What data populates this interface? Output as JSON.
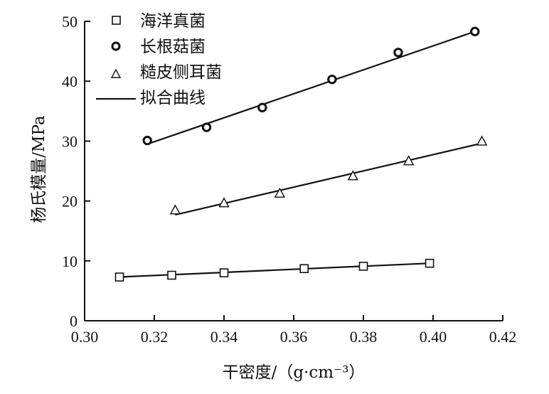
{
  "chart_data": {
    "type": "scatter",
    "xlabel": "干密度/（g·cm⁻³）",
    "ylabel": "杨氏模量/MPa",
    "xlim": [
      0.3,
      0.42
    ],
    "ylim": [
      0,
      50
    ],
    "x_ticks": [
      "0.30",
      "0.32",
      "0.34",
      "0.36",
      "0.38",
      "0.40",
      "0.42"
    ],
    "y_ticks": [
      "0",
      "10",
      "20",
      "30",
      "40",
      "50"
    ],
    "grid": false,
    "legend_position": "top-left",
    "series": [
      {
        "name": "海洋真菌",
        "marker": "square",
        "points": [
          [
            0.31,
            7.3
          ],
          [
            0.325,
            7.6
          ],
          [
            0.34,
            8.0
          ],
          [
            0.363,
            8.7
          ],
          [
            0.38,
            9.1
          ],
          [
            0.399,
            9.6
          ]
        ],
        "fit": [
          [
            0.31,
            7.3
          ],
          [
            0.399,
            9.6
          ]
        ]
      },
      {
        "name": "长根菇菌",
        "marker": "circle",
        "points": [
          [
            0.318,
            30.1
          ],
          [
            0.335,
            32.3
          ],
          [
            0.351,
            35.6
          ],
          [
            0.371,
            40.3
          ],
          [
            0.39,
            44.8
          ],
          [
            0.412,
            48.3
          ]
        ],
        "fit": [
          [
            0.318,
            29.5
          ],
          [
            0.413,
            48.5
          ]
        ]
      },
      {
        "name": "糙皮侧耳菌",
        "marker": "triangle",
        "points": [
          [
            0.326,
            18.5
          ],
          [
            0.34,
            19.7
          ],
          [
            0.356,
            21.3
          ],
          [
            0.377,
            24.2
          ],
          [
            0.393,
            26.7
          ],
          [
            0.414,
            30.0
          ]
        ],
        "fit": [
          [
            0.326,
            17.7
          ],
          [
            0.413,
            29.5
          ]
        ]
      }
    ],
    "legend_fit_label": "拟合曲线"
  }
}
